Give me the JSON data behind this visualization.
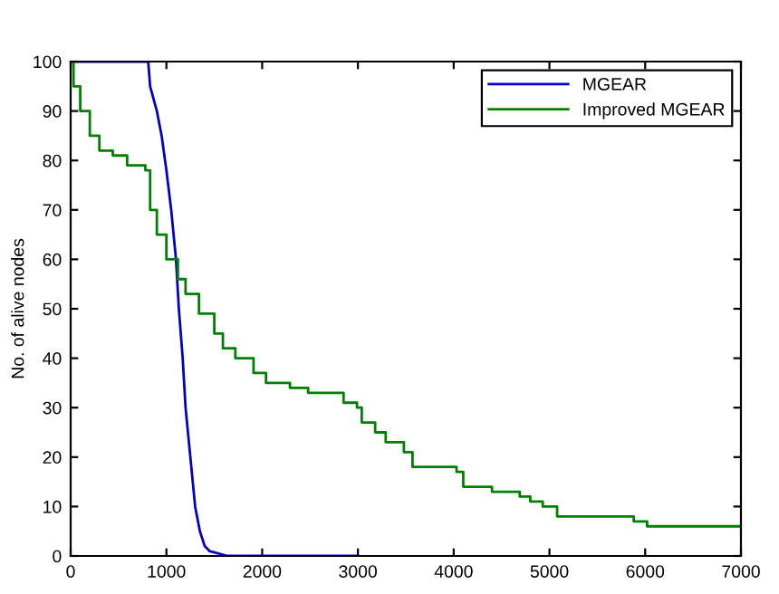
{
  "chart_data": {
    "type": "step",
    "ylabel": "No. of alive nodes",
    "xlim": [
      0,
      7000
    ],
    "ylim": [
      0,
      100
    ],
    "xticks": [
      0,
      1000,
      2000,
      3000,
      4000,
      5000,
      6000,
      7000
    ],
    "yticks": [
      0,
      10,
      20,
      30,
      40,
      50,
      60,
      70,
      80,
      90,
      100
    ],
    "grid": false,
    "legend": "top right",
    "series": [
      {
        "name": "MGEAR",
        "type": "line",
        "color": "#0000cc",
        "x": [
          0,
          810,
          830,
          900,
          950,
          1000,
          1050,
          1100,
          1130,
          1170,
          1200,
          1250,
          1300,
          1350,
          1400,
          1450,
          1640,
          3000
        ],
        "values": [
          100,
          100,
          95,
          90,
          85,
          78,
          70,
          60,
          50,
          40,
          30,
          20,
          10,
          5,
          2,
          1,
          0,
          0
        ]
      },
      {
        "name": "Improved MGEAR",
        "color": "#008000",
        "x": [
          0,
          30,
          100,
          200,
          300,
          440,
          590,
          780,
          830,
          900,
          1000,
          1120,
          1200,
          1340,
          1500,
          1590,
          1720,
          1910,
          2040,
          2290,
          2480,
          2850,
          2990,
          3040,
          3180,
          3290,
          3480,
          3570,
          4030,
          4100,
          4400,
          4690,
          4800,
          4930,
          5080,
          5880,
          6020,
          7000
        ],
        "values": [
          100,
          95,
          90,
          85,
          82,
          81,
          79,
          78,
          70,
          65,
          60,
          56,
          53,
          49,
          45,
          42,
          40,
          37,
          35,
          34,
          33,
          31,
          30,
          27,
          25,
          23,
          21,
          18,
          17,
          14,
          13,
          12,
          11,
          10,
          8,
          7,
          6,
          6
        ]
      }
    ]
  }
}
